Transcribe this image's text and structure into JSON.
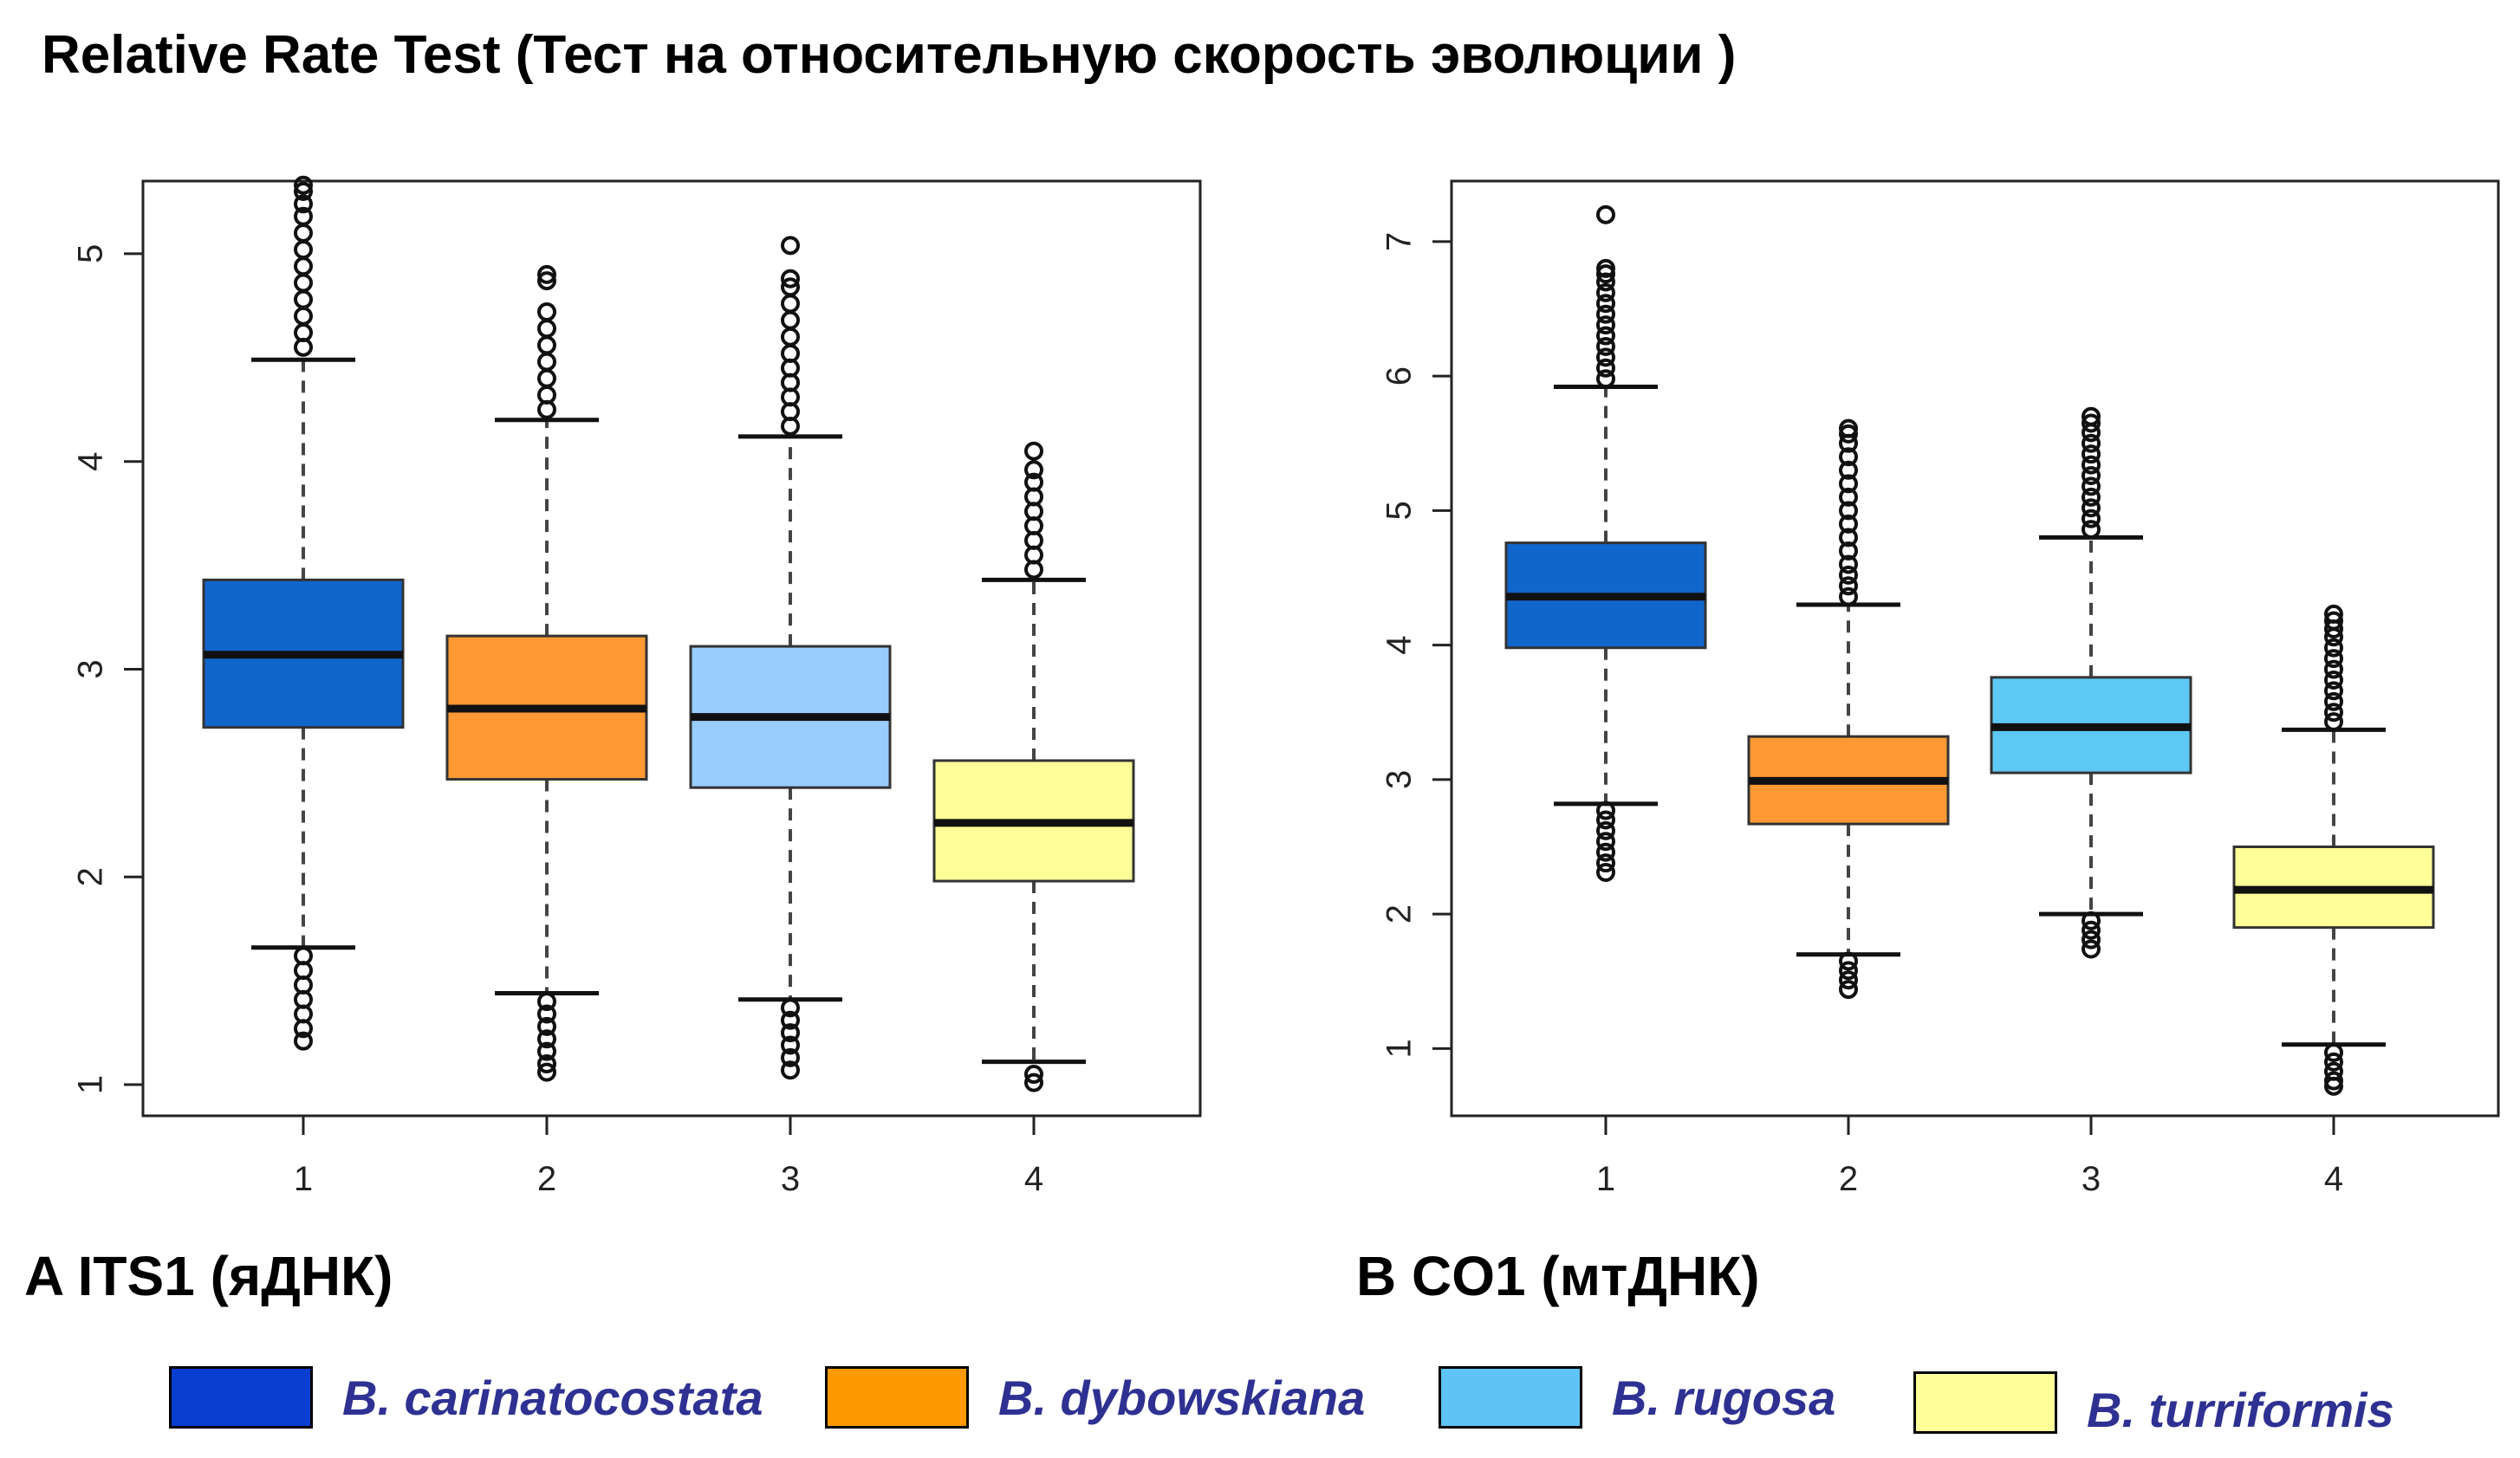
{
  "title": "Relative Rate Test (Тест на относительную скорость эволюции )",
  "panels": [
    {
      "label": "A  ITS1 (яДНК)"
    },
    {
      "label": "B  CO1 (мтДНК)"
    }
  ],
  "legend": [
    {
      "label": "B. carinatocostata",
      "color": "#0a3ed1"
    },
    {
      "label": "B. dybowskiana",
      "color": "#ff9900"
    },
    {
      "label": "B. rugosa",
      "color": "#5ec3f5"
    },
    {
      "label": "B. turriformis",
      "color": "#ffff99"
    }
  ],
  "chart_data": [
    {
      "type": "boxplot",
      "title": "A  ITS1 (яДНК)",
      "categories": [
        "1",
        "2",
        "3",
        "4"
      ],
      "yticks": [
        1,
        2,
        3,
        4,
        5
      ],
      "ylim": [
        0.85,
        5.35
      ],
      "series": [
        {
          "category": "1",
          "color": "#1166cc",
          "q1": 2.72,
          "median": 3.07,
          "q3": 3.43,
          "whisker_low": 1.66,
          "whisker_high": 4.49,
          "outliers_low": [
            1.62,
            1.55,
            1.48,
            1.41,
            1.34,
            1.27,
            1.21
          ],
          "outliers_high": [
            4.55,
            4.62,
            4.7,
            4.78,
            4.86,
            4.94,
            5.02,
            5.1,
            5.18,
            5.24,
            5.3,
            5.33
          ]
        },
        {
          "category": "2",
          "color": "#ff9933",
          "q1": 2.47,
          "median": 2.81,
          "q3": 3.16,
          "whisker_low": 1.44,
          "whisker_high": 4.2,
          "outliers_low": [
            1.4,
            1.34,
            1.28,
            1.22,
            1.16,
            1.1,
            1.06
          ],
          "outliers_high": [
            4.25,
            4.32,
            4.4,
            4.48,
            4.56,
            4.64,
            4.72,
            4.87,
            4.9
          ]
        },
        {
          "category": "3",
          "color": "#99ccff",
          "q1": 2.43,
          "median": 2.77,
          "q3": 3.11,
          "whisker_low": 1.41,
          "whisker_high": 4.12,
          "outliers_low": [
            1.37,
            1.31,
            1.25,
            1.19,
            1.13,
            1.07
          ],
          "outliers_high": [
            4.17,
            4.24,
            4.31,
            4.38,
            4.45,
            4.52,
            4.6,
            4.68,
            4.76,
            4.84,
            4.88,
            5.04
          ]
        },
        {
          "category": "4",
          "color": "#ffff99",
          "q1": 1.98,
          "median": 2.26,
          "q3": 2.56,
          "whisker_low": 1.11,
          "whisker_high": 3.43,
          "outliers_low": [
            1.05,
            1.01
          ],
          "outliers_high": [
            3.48,
            3.55,
            3.62,
            3.69,
            3.76,
            3.83,
            3.9,
            3.96,
            4.05
          ]
        }
      ]
    },
    {
      "type": "boxplot",
      "title": "B  CO1 (мтДНК)",
      "categories": [
        "1",
        "2",
        "3",
        "4"
      ],
      "yticks": [
        1,
        2,
        3,
        4,
        5,
        6,
        7
      ],
      "ylim": [
        0.5,
        7.45
      ],
      "series": [
        {
          "category": "1",
          "color": "#1166cc",
          "q1": 3.98,
          "median": 4.36,
          "q3": 4.76,
          "whisker_low": 2.82,
          "whisker_high": 5.92,
          "outliers_low": [
            2.77,
            2.7,
            2.62,
            2.54,
            2.46,
            2.38,
            2.31
          ],
          "outliers_high": [
            5.98,
            6.06,
            6.14,
            6.22,
            6.3,
            6.38,
            6.46,
            6.54,
            6.62,
            6.7,
            6.76,
            6.8,
            7.2
          ]
        },
        {
          "category": "2",
          "color": "#ff9933",
          "q1": 2.67,
          "median": 2.99,
          "q3": 3.32,
          "whisker_low": 1.7,
          "whisker_high": 4.3,
          "outliers_low": [
            1.65,
            1.58,
            1.51,
            1.44
          ],
          "outliers_high": [
            4.36,
            4.44,
            4.52,
            4.6,
            4.7,
            4.8,
            4.9,
            5.0,
            5.1,
            5.2,
            5.3,
            5.4,
            5.5,
            5.57,
            5.61
          ]
        },
        {
          "category": "3",
          "color": "#5ec8f5",
          "q1": 3.05,
          "median": 3.39,
          "q3": 3.76,
          "whisker_low": 2.0,
          "whisker_high": 4.8,
          "outliers_low": [
            1.95,
            1.88,
            1.81,
            1.74
          ],
          "outliers_high": [
            4.86,
            4.94,
            5.02,
            5.1,
            5.18,
            5.26,
            5.34,
            5.42,
            5.5,
            5.58,
            5.65,
            5.7
          ]
        },
        {
          "category": "4",
          "color": "#ffff99",
          "q1": 1.9,
          "median": 2.18,
          "q3": 2.5,
          "whisker_low": 1.03,
          "whisker_high": 3.37,
          "outliers_low": [
            0.97,
            0.9,
            0.83,
            0.76,
            0.72
          ],
          "outliers_high": [
            3.43,
            3.5,
            3.58,
            3.66,
            3.74,
            3.82,
            3.9,
            3.98,
            4.06,
            4.12,
            4.18,
            4.23
          ]
        }
      ]
    }
  ]
}
